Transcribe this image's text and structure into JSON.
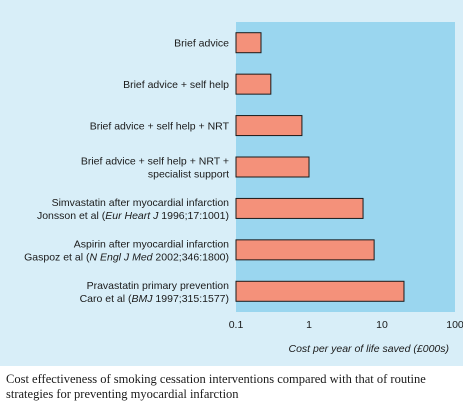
{
  "chart_data": {
    "type": "bar",
    "orientation": "horizontal",
    "x_scale": "log",
    "xlim": [
      0.1,
      100
    ],
    "xticks": [
      "0.1",
      "1",
      "10",
      "100"
    ],
    "xlabel": "Cost per year of life saved (£000s)",
    "grid": false,
    "categories": [
      [
        {
          "t": "Brief advice"
        }
      ],
      [
        {
          "t": "Brief advice + self help"
        }
      ],
      [
        {
          "t": "Brief advice + self help + NRT"
        }
      ],
      [
        {
          "t": "Brief advice + self help + NRT +"
        },
        {
          "t": "specialist support"
        }
      ],
      [
        {
          "t": "Simvastatin after myocardial infarction"
        },
        {
          "t": "Jonsson et al ("
        },
        {
          "t": "Eur Heart J",
          "i": true
        },
        {
          "t": " 1996;17:1001)"
        }
      ],
      [
        {
          "t": "Aspirin after myocardial infarction"
        },
        {
          "t": "Gaspoz et al ("
        },
        {
          "t": "N Engl J Med",
          "i": true
        },
        {
          "t": " 2002;346:1800)"
        }
      ],
      [
        {
          "t": "Pravastatin primary prevention"
        },
        {
          "t": "Caro et al ("
        },
        {
          "t": "BMJ",
          "i": true
        },
        {
          "t": " 1997;315:1577)"
        }
      ]
    ],
    "values": [
      0.22,
      0.3,
      0.8,
      1.0,
      5.5,
      7.8,
      20
    ],
    "bar_color": "#f4917a",
    "bar_edge": "#1a1a1a",
    "plot_bg": "#9ad6ef",
    "panel_bg": "#d8eef8"
  },
  "caption": "Cost effectiveness of smoking cessation interventions compared with that of routine strategies for preventing myocardial infarction"
}
